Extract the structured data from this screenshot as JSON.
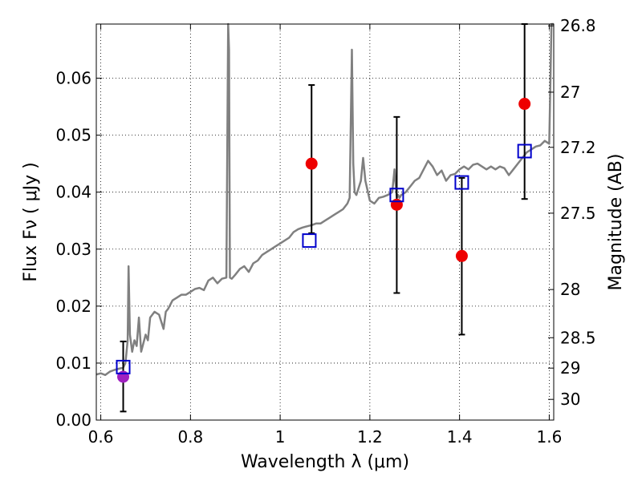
{
  "chart_data": {
    "type": "scatter",
    "title": "",
    "xlabel": "Wavelength  λ (μm)",
    "ylabel": "Flux  Fν  ( μJy )",
    "y2label": "Magnitude (AB)",
    "xlim": [
      0.59,
      1.61
    ],
    "ylim": [
      0.0,
      0.0695
    ],
    "grid": true,
    "legend": "none",
    "x_ticks": [
      {
        "value": 0.6,
        "label": "0.6"
      },
      {
        "value": 0.8,
        "label": "0.8"
      },
      {
        "value": 1.0,
        "label": "1"
      },
      {
        "value": 1.2,
        "label": "1.2"
      },
      {
        "value": 1.4,
        "label": "1.4"
      },
      {
        "value": 1.6,
        "label": "1.6"
      }
    ],
    "y_ticks": [
      {
        "value": 0.0,
        "label": "0.00"
      },
      {
        "value": 0.01,
        "label": "0.01"
      },
      {
        "value": 0.02,
        "label": "0.02"
      },
      {
        "value": 0.03,
        "label": "0.03"
      },
      {
        "value": 0.04,
        "label": "0.04"
      },
      {
        "value": 0.05,
        "label": "0.05"
      },
      {
        "value": 0.06,
        "label": "0.06"
      }
    ],
    "y2_ticks": [
      {
        "mag": 26.8,
        "label": "26.8"
      },
      {
        "mag": 27.0,
        "label": "27"
      },
      {
        "mag": 27.2,
        "label": "27.2"
      },
      {
        "mag": 27.5,
        "label": "27.5"
      },
      {
        "mag": 28.0,
        "label": "28"
      },
      {
        "mag": 28.5,
        "label": "28.5"
      },
      {
        "mag": 29.0,
        "label": "29"
      },
      {
        "mag": 30.0,
        "label": "30"
      }
    ],
    "series": [
      {
        "kind": "line",
        "color": "#808080",
        "x": [
          0.59,
          0.6,
          0.61,
          0.62,
          0.63,
          0.64,
          0.65,
          0.655,
          0.66,
          0.662,
          0.665,
          0.67,
          0.675,
          0.68,
          0.685,
          0.69,
          0.7,
          0.705,
          0.71,
          0.72,
          0.73,
          0.74,
          0.745,
          0.75,
          0.76,
          0.77,
          0.78,
          0.79,
          0.8,
          0.81,
          0.82,
          0.83,
          0.84,
          0.85,
          0.86,
          0.87,
          0.88,
          0.884,
          0.886,
          0.888,
          0.892,
          0.9,
          0.91,
          0.92,
          0.93,
          0.94,
          0.95,
          0.96,
          0.97,
          0.98,
          0.99,
          1.0,
          1.01,
          1.02,
          1.03,
          1.04,
          1.05,
          1.06,
          1.07,
          1.08,
          1.09,
          1.1,
          1.11,
          1.12,
          1.13,
          1.14,
          1.15,
          1.155,
          1.16,
          1.163,
          1.166,
          1.17,
          1.18,
          1.185,
          1.19,
          1.2,
          1.21,
          1.22,
          1.23,
          1.24,
          1.25,
          1.255,
          1.26,
          1.263,
          1.266,
          1.27,
          1.28,
          1.29,
          1.3,
          1.31,
          1.32,
          1.33,
          1.34,
          1.35,
          1.36,
          1.37,
          1.38,
          1.39,
          1.4,
          1.41,
          1.42,
          1.43,
          1.44,
          1.45,
          1.46,
          1.47,
          1.48,
          1.49,
          1.5,
          1.51,
          1.52,
          1.53,
          1.54,
          1.55,
          1.56,
          1.57,
          1.58,
          1.59,
          1.6,
          1.605,
          1.61
        ],
        "y": [
          0.008,
          0.0082,
          0.0079,
          0.0085,
          0.0088,
          0.009,
          0.0092,
          0.01,
          0.014,
          0.027,
          0.015,
          0.012,
          0.014,
          0.013,
          0.018,
          0.012,
          0.015,
          0.014,
          0.018,
          0.019,
          0.0185,
          0.016,
          0.019,
          0.0195,
          0.021,
          0.0215,
          0.022,
          0.022,
          0.0225,
          0.023,
          0.0232,
          0.0228,
          0.0245,
          0.025,
          0.024,
          0.0248,
          0.025,
          0.07,
          0.065,
          0.025,
          0.0248,
          0.0255,
          0.0265,
          0.027,
          0.026,
          0.0275,
          0.028,
          0.029,
          0.0295,
          0.03,
          0.0305,
          0.031,
          0.0315,
          0.032,
          0.033,
          0.0335,
          0.0338,
          0.034,
          0.0342,
          0.0345,
          0.0345,
          0.035,
          0.0355,
          0.036,
          0.0365,
          0.037,
          0.038,
          0.039,
          0.065,
          0.045,
          0.04,
          0.0395,
          0.042,
          0.046,
          0.042,
          0.0385,
          0.038,
          0.039,
          0.0392,
          0.0395,
          0.04,
          0.044,
          0.039,
          0.0395,
          0.039,
          0.0395,
          0.04,
          0.041,
          0.042,
          0.0425,
          0.044,
          0.0455,
          0.0445,
          0.043,
          0.0438,
          0.042,
          0.043,
          0.0432,
          0.044,
          0.0445,
          0.044,
          0.0448,
          0.045,
          0.0445,
          0.044,
          0.0445,
          0.044,
          0.0445,
          0.0442,
          0.043,
          0.044,
          0.045,
          0.046,
          0.047,
          0.0475,
          0.048,
          0.0482,
          0.049,
          0.0485,
          0.07,
          0.07
        ]
      },
      {
        "kind": "points",
        "marker": "circle",
        "name": "",
        "color": "#ee0000",
        "points": [
          {
            "x": 1.07,
            "y": 0.045,
            "err_low": 0.0328,
            "err_high": 0.0588
          },
          {
            "x": 1.26,
            "y": 0.0378,
            "err_low": 0.0223,
            "err_high": 0.0532
          },
          {
            "x": 1.405,
            "y": 0.0288,
            "err_low": 0.015,
            "err_high": 0.0425
          },
          {
            "x": 1.545,
            "y": 0.0555,
            "err_low": 0.0388,
            "err_high": 0.07
          }
        ]
      },
      {
        "kind": "points",
        "marker": "circle",
        "name": "",
        "color": "#a020c0",
        "points": [
          {
            "x": 0.65,
            "y": 0.0076,
            "err_low": 0.0015,
            "err_high": 0.0138
          }
        ]
      },
      {
        "kind": "points",
        "marker": "square",
        "name": "",
        "color": "#0000cc",
        "points": [
          {
            "x": 0.65,
            "y": 0.0093
          },
          {
            "x": 1.065,
            "y": 0.0315
          },
          {
            "x": 1.26,
            "y": 0.0395
          },
          {
            "x": 1.405,
            "y": 0.0417
          },
          {
            "x": 1.545,
            "y": 0.0472
          }
        ]
      }
    ]
  }
}
